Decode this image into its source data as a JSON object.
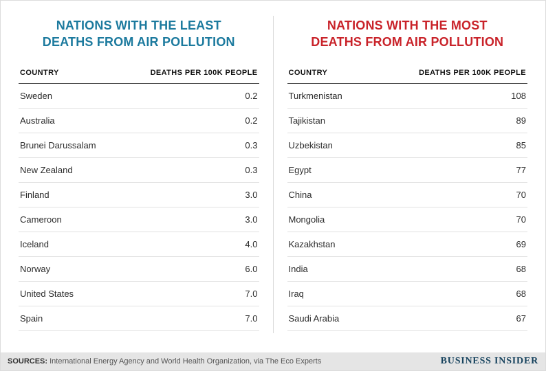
{
  "left_table": {
    "title_line1": "NATIONS WITH THE LEAST",
    "title_line2": "DEATHS FROM AIR POLLUTION",
    "accent_color": "#1c7a9e",
    "columns": {
      "country": "COUNTRY",
      "value": "DEATHS PER 100K PEOPLE"
    },
    "rows": [
      {
        "country": "Sweden",
        "value": "0.2"
      },
      {
        "country": "Australia",
        "value": "0.2"
      },
      {
        "country": "Brunei Darussalam",
        "value": "0.3"
      },
      {
        "country": "New Zealand",
        "value": "0.3"
      },
      {
        "country": "Finland",
        "value": "3.0"
      },
      {
        "country": "Cameroon",
        "value": "3.0"
      },
      {
        "country": "Iceland",
        "value": "4.0"
      },
      {
        "country": "Norway",
        "value": "6.0"
      },
      {
        "country": "United States",
        "value": "7.0"
      },
      {
        "country": "Spain",
        "value": "7.0"
      }
    ]
  },
  "right_table": {
    "title_line1": "NATIONS WITH THE MOST",
    "title_line2": "DEATHS FROM AIR POLLUTION",
    "accent_color": "#c9232a",
    "columns": {
      "country": "COUNTRY",
      "value": "DEATHS PER 100K PEOPLE"
    },
    "rows": [
      {
        "country": "Turkmenistan",
        "value": "108"
      },
      {
        "country": "Tajikistan",
        "value": "89"
      },
      {
        "country": "Uzbekistan",
        "value": "85"
      },
      {
        "country": "Egypt",
        "value": "77"
      },
      {
        "country": "China",
        "value": "70"
      },
      {
        "country": "Mongolia",
        "value": "70"
      },
      {
        "country": "Kazakhstan",
        "value": "69"
      },
      {
        "country": "India",
        "value": "68"
      },
      {
        "country": "Iraq",
        "value": "68"
      },
      {
        "country": "Saudi Arabia",
        "value": "67"
      }
    ]
  },
  "footer": {
    "sources_label": "SOURCES:",
    "sources_text": "International Energy Agency and World Health Organization, via The Eco Experts",
    "brand": "BUSINESS INSIDER"
  },
  "chart_data": [
    {
      "type": "table",
      "title": "NATIONS WITH THE LEAST DEATHS FROM AIR POLLUTION",
      "columns": [
        "COUNTRY",
        "DEATHS PER 100K PEOPLE"
      ],
      "rows": [
        [
          "Sweden",
          0.2
        ],
        [
          "Australia",
          0.2
        ],
        [
          "Brunei Darussalam",
          0.3
        ],
        [
          "New Zealand",
          0.3
        ],
        [
          "Finland",
          3.0
        ],
        [
          "Cameroon",
          3.0
        ],
        [
          "Iceland",
          4.0
        ],
        [
          "Norway",
          6.0
        ],
        [
          "United States",
          7.0
        ],
        [
          "Spain",
          7.0
        ]
      ]
    },
    {
      "type": "table",
      "title": "NATIONS WITH THE MOST DEATHS FROM AIR POLLUTION",
      "columns": [
        "COUNTRY",
        "DEATHS PER 100K PEOPLE"
      ],
      "rows": [
        [
          "Turkmenistan",
          108
        ],
        [
          "Tajikistan",
          89
        ],
        [
          "Uzbekistan",
          85
        ],
        [
          "Egypt",
          77
        ],
        [
          "China",
          70
        ],
        [
          "Mongolia",
          70
        ],
        [
          "Kazakhstan",
          69
        ],
        [
          "India",
          68
        ],
        [
          "Iraq",
          68
        ],
        [
          "Saudi Arabia",
          67
        ]
      ]
    }
  ]
}
